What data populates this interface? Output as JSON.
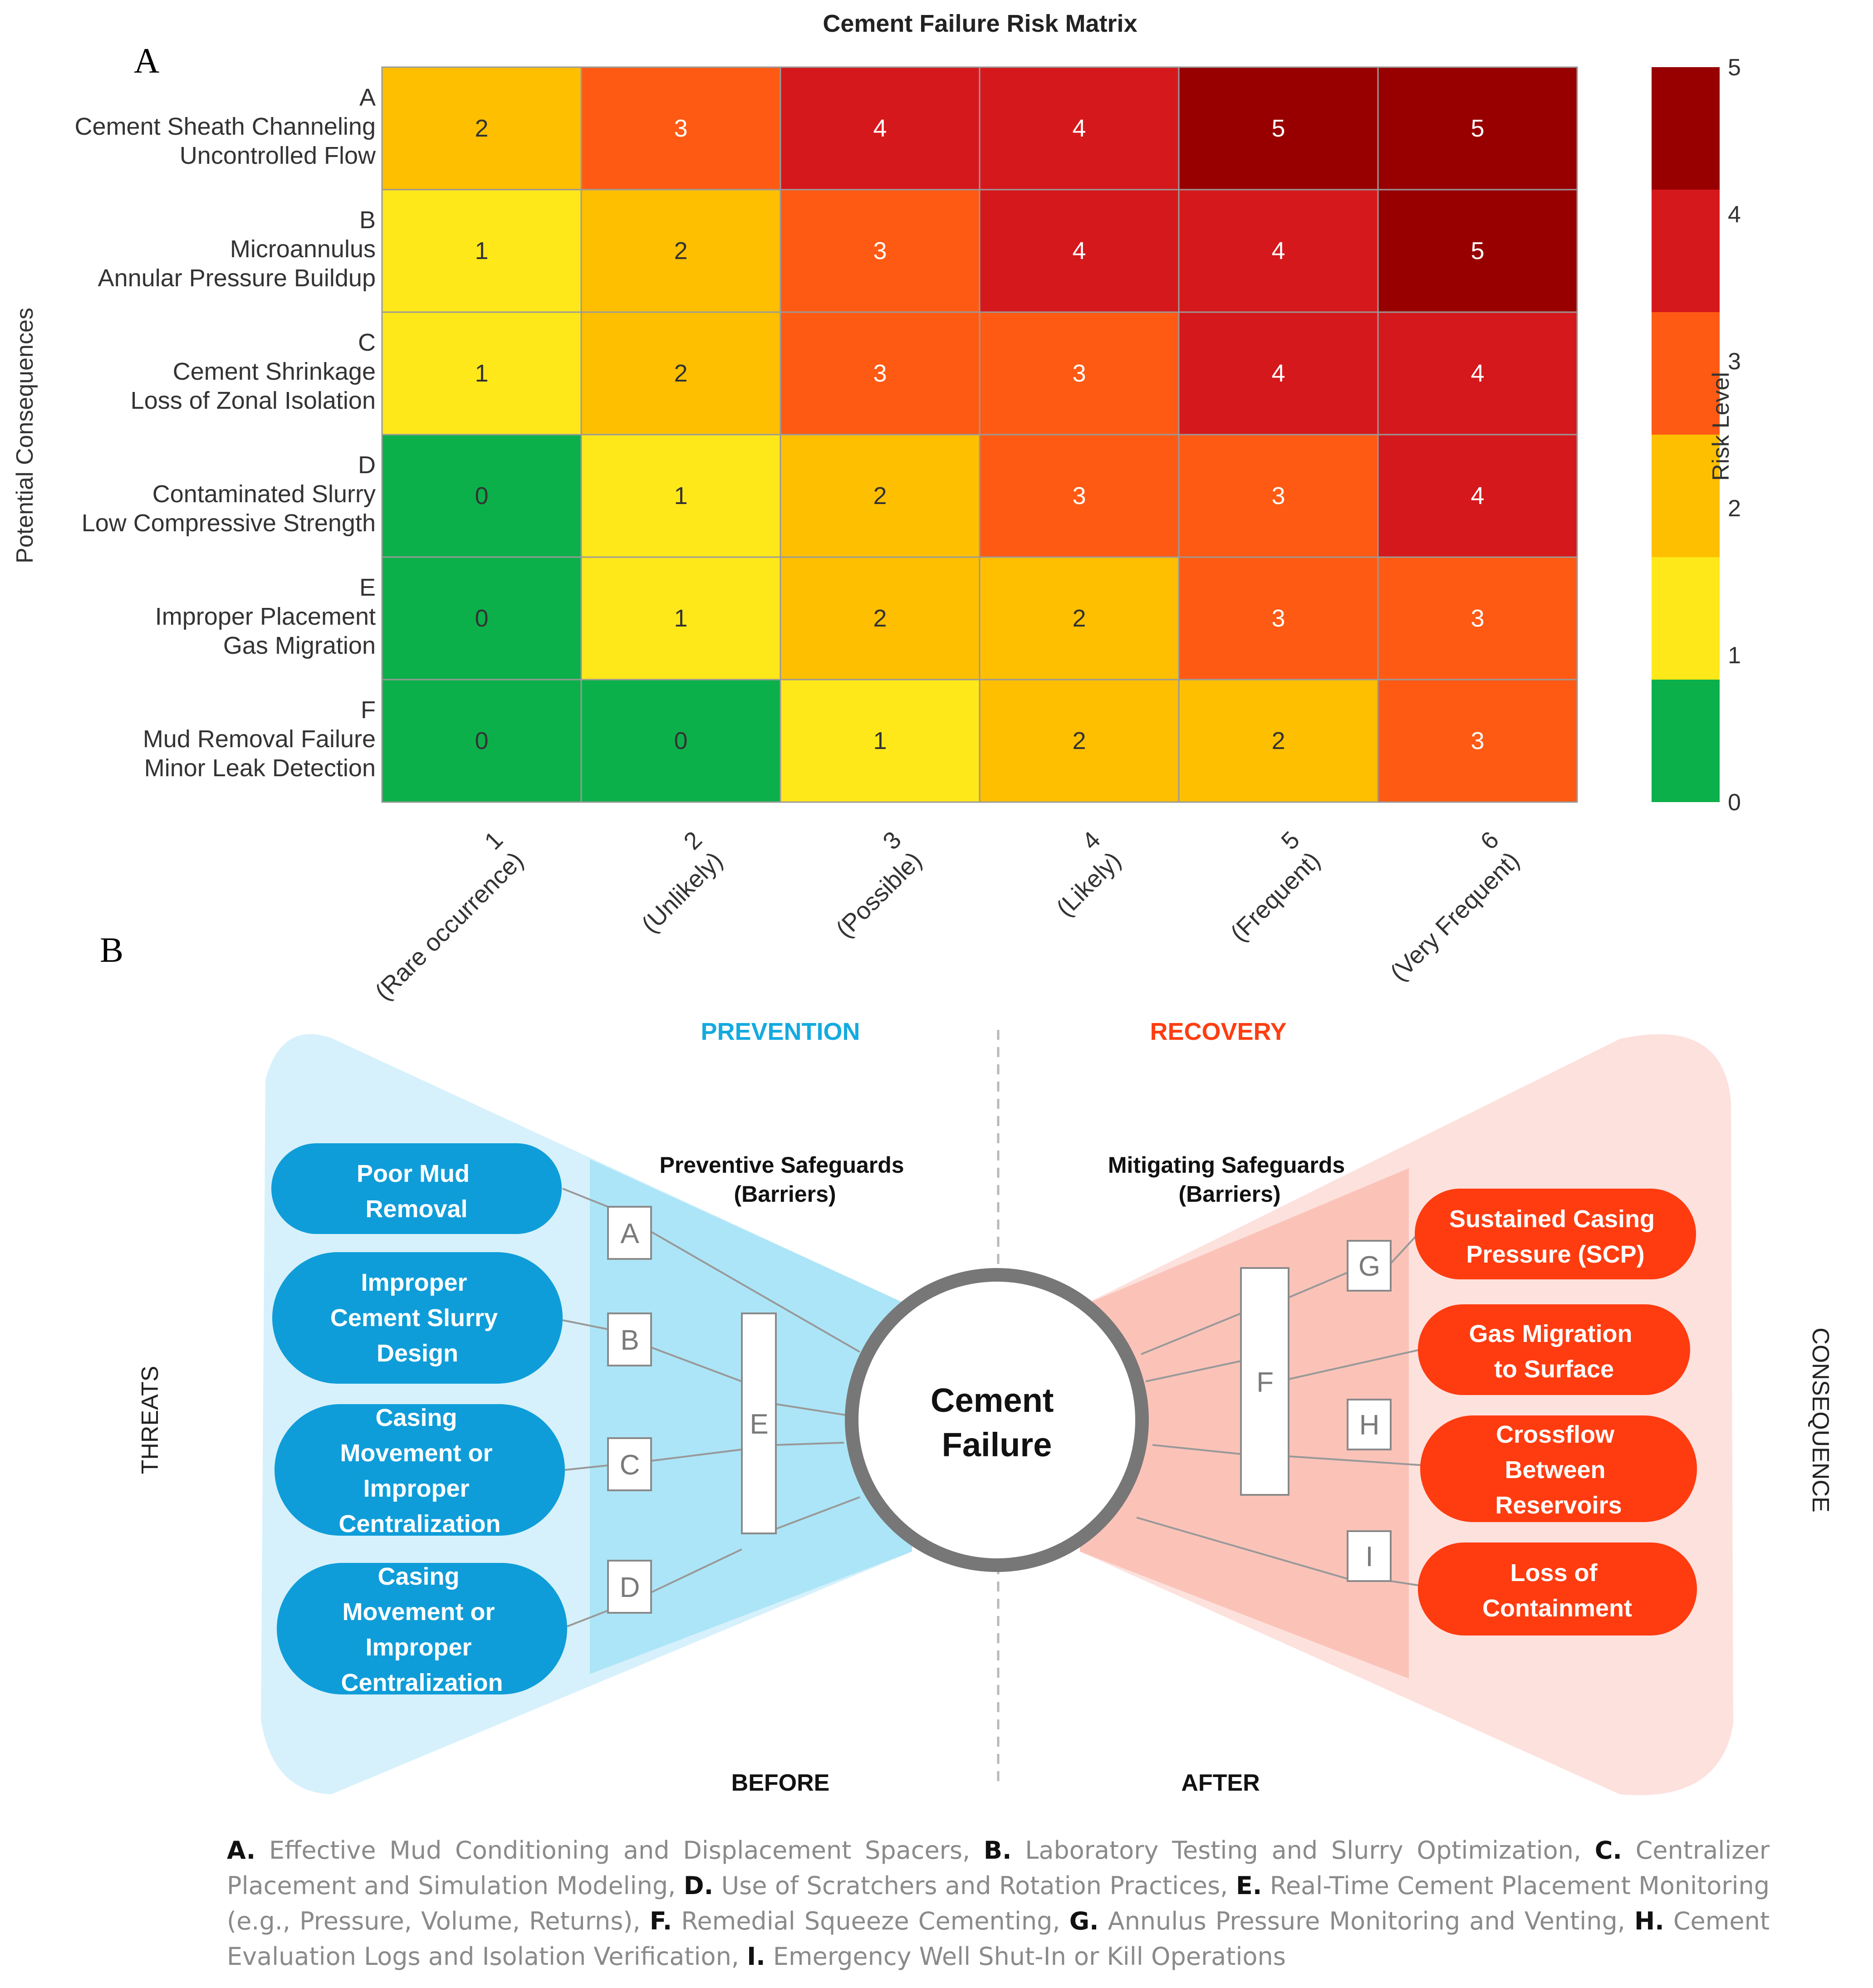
{
  "panel_a": {
    "label": "A",
    "chart_data": {
      "type": "heatmap",
      "title": "Cement Failure Risk Matrix",
      "ylabel": "Potential Consequences",
      "colorbar_label": "Risk Level",
      "colorbar_ticks": [
        "0",
        "1",
        "2",
        "3",
        "4",
        "5"
      ],
      "colorbar_range": [
        0,
        5
      ],
      "rows": [
        {
          "letter": "A",
          "line1": "Cement Sheath Channeling",
          "line2": "Uncontrolled Flow"
        },
        {
          "letter": "B",
          "line1": "Microannulus",
          "line2": "Annular Pressure Buildup"
        },
        {
          "letter": "C",
          "line1": "Cement Shrinkage",
          "line2": "Loss of Zonal Isolation"
        },
        {
          "letter": "D",
          "line1": "Contaminated Slurry",
          "line2": "Low Compressive Strength"
        },
        {
          "letter": "E",
          "line1": "Improper Placement",
          "line2": "Gas Migration"
        },
        {
          "letter": "F",
          "line1": "Mud Removal Failure",
          "line2": "Minor Leak Detection"
        }
      ],
      "columns": [
        {
          "num": "1",
          "label": "(Rare occurrence)"
        },
        {
          "num": "2",
          "label": "(Unlikely)"
        },
        {
          "num": "3",
          "label": "(Possible)"
        },
        {
          "num": "4",
          "label": "(Likely)"
        },
        {
          "num": "5",
          "label": "(Frequent)"
        },
        {
          "num": "6",
          "label": "(Very Frequent)"
        }
      ],
      "values": [
        [
          2,
          3,
          4,
          4,
          5,
          5
        ],
        [
          1,
          2,
          3,
          4,
          4,
          5
        ],
        [
          1,
          2,
          3,
          3,
          4,
          4
        ],
        [
          0,
          1,
          2,
          3,
          3,
          4
        ],
        [
          0,
          1,
          2,
          2,
          3,
          3
        ],
        [
          0,
          0,
          1,
          2,
          2,
          3
        ]
      ],
      "level_colors": [
        "#0cb04a",
        "#ffe81a",
        "#fdbf00",
        "#fe5a14",
        "#d5181c",
        "#980000"
      ]
    }
  },
  "panel_b": {
    "label": "B",
    "prevention": "PREVENTION",
    "recovery": "RECOVERY",
    "threats_label": "THREATS",
    "consequence_label": "CONSEQUENCE",
    "before": "BEFORE",
    "after": "AFTER",
    "preventive_title": [
      "Preventive Safeguards",
      "(Barriers)"
    ],
    "mitigating_title": [
      "Mitigating Safeguards",
      "(Barriers)"
    ],
    "center": [
      "Cement",
      "Failure"
    ],
    "threats": [
      [
        "Poor Mud",
        "Removal"
      ],
      [
        "Improper",
        "Cement Slurry",
        "Design"
      ],
      [
        "Casing",
        "Movement or",
        "Improper",
        "Centralization"
      ],
      [
        "Casing",
        "Movement or",
        "Improper",
        "Centralization"
      ]
    ],
    "consequences": [
      [
        "Sustained Casing",
        "Pressure (SCP)"
      ],
      [
        "Gas Migration",
        "to Surface"
      ],
      [
        "Crossflow",
        "Between",
        "Reservoirs"
      ],
      [
        "Loss of",
        "Containment"
      ]
    ],
    "barriers": {
      "A": "A",
      "B": "B",
      "C": "C",
      "D": "D",
      "E": "E",
      "F": "F",
      "G": "G",
      "H": "H",
      "I": "I"
    },
    "colors": {
      "prevention": "#14aadf",
      "recovery": "#fe3e12",
      "threat_box": "#0f9dd9",
      "consequence_box": "#fe3c10"
    }
  },
  "legend": [
    {
      "key": "A.",
      "text": "Effective Mud Conditioning and Displacement Spacers,"
    },
    {
      "key": "B.",
      "text": "Laboratory Testing and Slurry Optimization,"
    },
    {
      "key": "C.",
      "text": "Centralizer Placement and Simulation Modeling,"
    },
    {
      "key": "D.",
      "text": "Use of Scratchers and Rotation Practices,"
    },
    {
      "key": "E.",
      "text": "Real-Time Cement Placement Monitoring (e.g., Pressure, Volume, Returns),"
    },
    {
      "key": "F.",
      "text": "Remedial Squeeze Cementing,"
    },
    {
      "key": "G.",
      "text": "Annulus Pressure Monitoring and Venting,"
    },
    {
      "key": "H.",
      "text": "Cement Evaluation Logs and Isolation Verification,"
    },
    {
      "key": "I.",
      "text": "Emergency Well Shut-In or Kill Operations"
    }
  ]
}
